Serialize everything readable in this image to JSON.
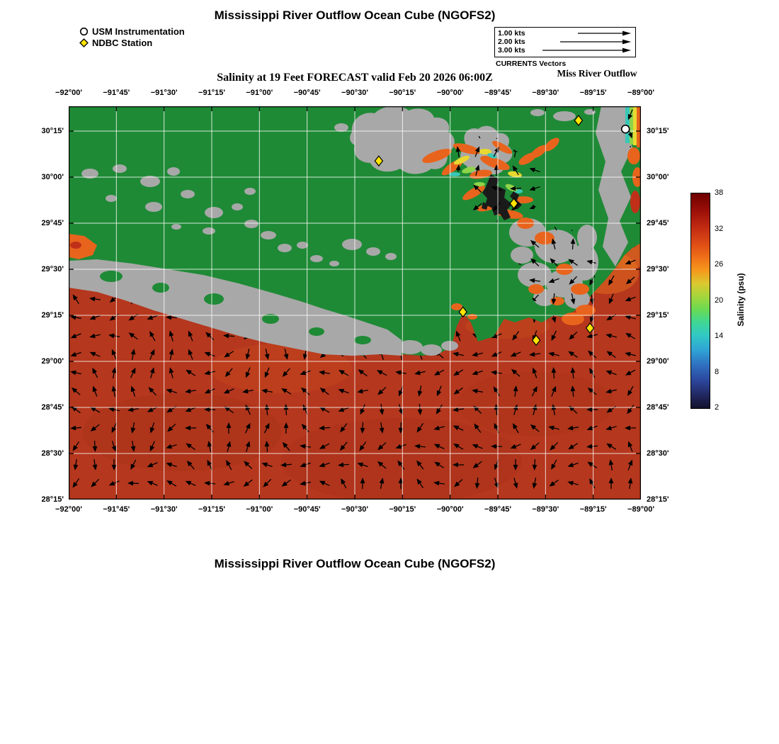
{
  "page": {
    "title_top": "Mississippi River Outflow Ocean Cube (NGOFS2)",
    "subtitle": "Salinity at 19 Feet FORECAST valid Feb 20 2026 06:00Z",
    "region_label": "Miss River Outflow",
    "title_bottom": "Mississippi River Outflow Ocean Cube (NGOFS2)"
  },
  "legend": {
    "items": [
      {
        "label": "USM Instrumentation",
        "marker": "white-circle"
      },
      {
        "label": "NDBC Station",
        "marker": "yellow-diamond"
      }
    ]
  },
  "currents_legend": {
    "entries": [
      "1.00 kts",
      "2.00 kts",
      "3.00 kts"
    ],
    "title": "CURRENTS Vectors"
  },
  "axes": {
    "lon_ticks": [
      "−92°00'",
      "−91°45'",
      "−91°30'",
      "−91°15'",
      "−91°00'",
      "−90°45'",
      "−90°30'",
      "−90°15'",
      "−90°00'",
      "−89°45'",
      "−89°30'",
      "−89°15'",
      "−89°00'"
    ],
    "lat_ticks": [
      "30°15'",
      "30°00'",
      "29°45'",
      "29°30'",
      "29°15'",
      "29°00'",
      "28°45'",
      "28°30'",
      "28°15'"
    ]
  },
  "colorbar": {
    "title": "Salinity (psu)",
    "ticks": [
      38,
      32,
      26,
      20,
      14,
      8,
      2
    ]
  },
  "stations": {
    "usm": [
      [
        0.973,
        0.058
      ]
    ],
    "ndbc": [
      [
        0.891,
        0.036
      ],
      [
        0.542,
        0.139
      ],
      [
        0.778,
        0.247
      ],
      [
        0.689,
        0.523
      ],
      [
        0.911,
        0.564
      ],
      [
        0.817,
        0.595
      ]
    ]
  },
  "colors": {
    "land": "#a8a8a8",
    "nodata_green": "#1f8a36",
    "sea_red": "#b5371d",
    "patch_orange": "#e8641c",
    "patch_yellow": "#e8d830",
    "patch_cyan": "#38c8b8",
    "patch_green": "#8ed44a",
    "ndbc_yellow": "#ffe400",
    "usm_white": "#ffffff"
  },
  "chart_data": {
    "type": "heatmap",
    "title": "Salinity at 19 Feet FORECAST valid Feb 20 2026 06:00Z",
    "field": "salinity",
    "units": "psu",
    "colorbar_label": "Salinity (psu)",
    "colorbar_ticks": [
      38,
      32,
      26,
      20,
      14,
      8,
      2
    ],
    "colorbar_range": [
      2,
      38
    ],
    "lon_range": [
      "−92°00'",
      "−89°00'"
    ],
    "lat_range": [
      "28°15'",
      "30°15'"
    ],
    "vector_legend_kts": [
      1.0,
      2.0,
      3.0
    ],
    "station_markers": {
      "USM Instrumentation": 1,
      "NDBC Station": 6
    }
  }
}
